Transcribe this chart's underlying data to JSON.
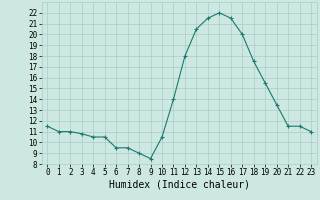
{
  "x": [
    0,
    1,
    2,
    3,
    4,
    5,
    6,
    7,
    8,
    9,
    10,
    11,
    12,
    13,
    14,
    15,
    16,
    17,
    18,
    19,
    20,
    21,
    22,
    23
  ],
  "y": [
    11.5,
    11.0,
    11.0,
    10.8,
    10.5,
    10.5,
    9.5,
    9.5,
    9.0,
    8.5,
    10.5,
    14.0,
    18.0,
    20.5,
    21.5,
    22.0,
    21.5,
    20.0,
    17.5,
    15.5,
    13.5,
    11.5,
    11.5,
    11.0
  ],
  "line_color": "#1a7a6e",
  "marker": "+",
  "marker_size": 3,
  "bg_color": "#cce8e0",
  "grid_color": "#aacccc",
  "xlabel": "Humidex (Indice chaleur)",
  "ylim": [
    8,
    23
  ],
  "xlim": [
    -0.5,
    23.5
  ],
  "yticks": [
    8,
    9,
    10,
    11,
    12,
    13,
    14,
    15,
    16,
    17,
    18,
    19,
    20,
    21,
    22
  ],
  "xticks": [
    0,
    1,
    2,
    3,
    4,
    5,
    6,
    7,
    8,
    9,
    10,
    11,
    12,
    13,
    14,
    15,
    16,
    17,
    18,
    19,
    20,
    21,
    22,
    23
  ],
  "tick_fontsize": 5.5,
  "xlabel_fontsize": 7,
  "line_width": 0.8,
  "marker_edge_width": 0.8
}
